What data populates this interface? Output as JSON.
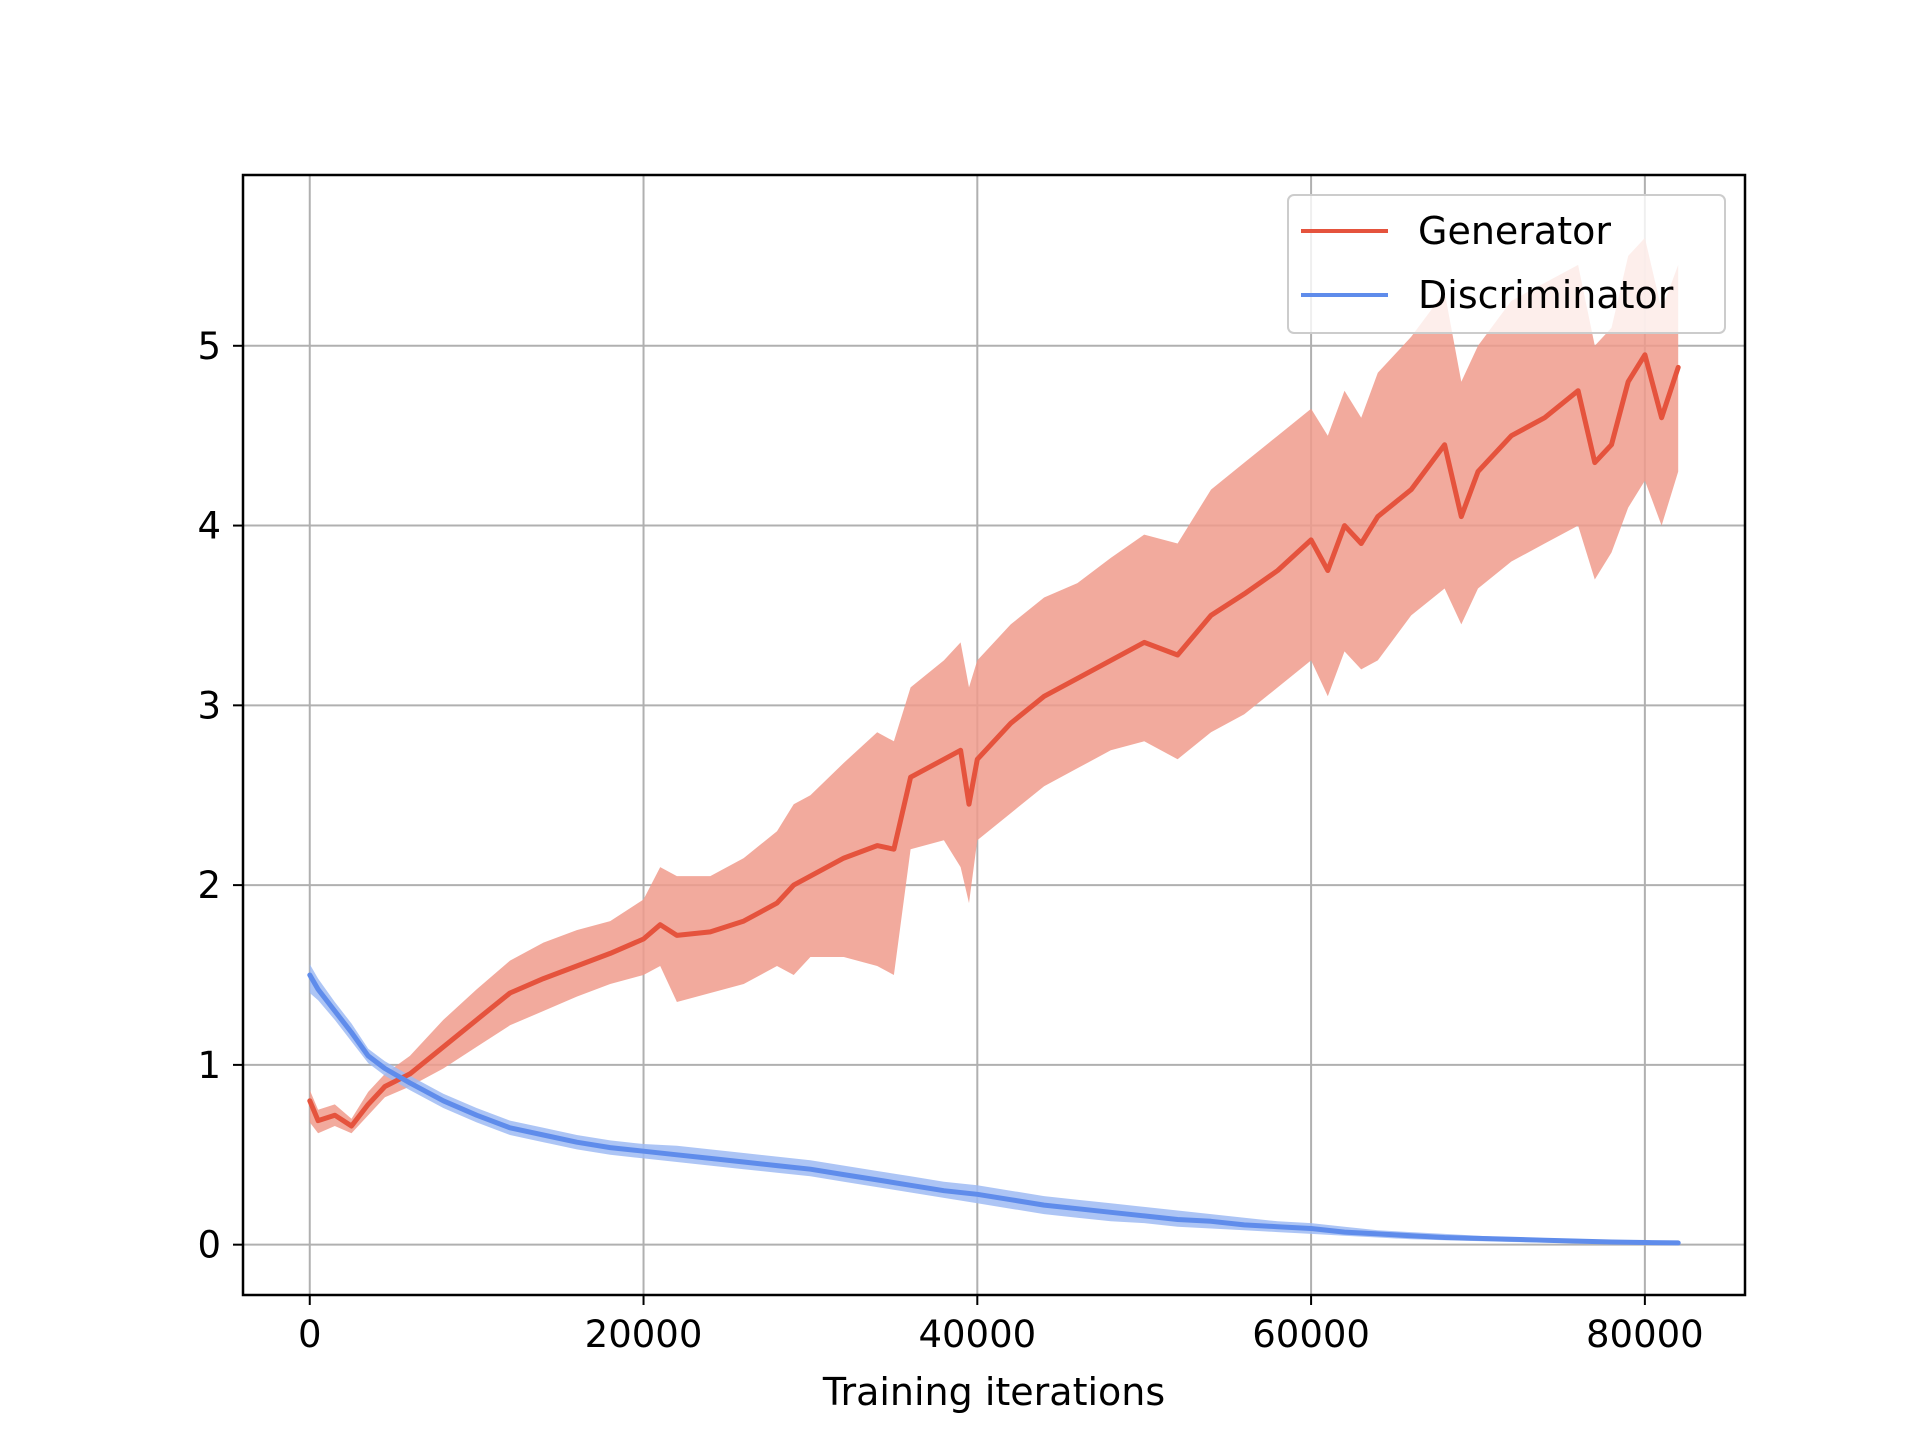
{
  "chart_data": {
    "type": "line",
    "title": "",
    "xlabel": "Training iterations",
    "ylabel": "",
    "xlim": [
      -4000,
      86000
    ],
    "ylim": [
      -0.28,
      5.95
    ],
    "xticks": [
      0,
      20000,
      40000,
      60000,
      80000
    ],
    "xtick_labels": [
      "0",
      "20000",
      "40000",
      "60000",
      "80000"
    ],
    "yticks": [
      0,
      1,
      2,
      3,
      4,
      5
    ],
    "ytick_labels": [
      "0",
      "1",
      "2",
      "3",
      "4",
      "5"
    ],
    "grid": true,
    "legend_position": "top-right",
    "series": [
      {
        "name": "Generator",
        "color": "#e5533d",
        "band_color": "#f09b8c",
        "x": [
          0,
          500,
          1500,
          2500,
          3500,
          4500,
          6000,
          8000,
          10000,
          12000,
          14000,
          16000,
          18000,
          20000,
          21000,
          22000,
          24000,
          26000,
          28000,
          29000,
          30000,
          32000,
          34000,
          35000,
          36000,
          38000,
          39000,
          39500,
          40000,
          42000,
          44000,
          46000,
          48000,
          50000,
          52000,
          54000,
          56000,
          58000,
          60000,
          61000,
          62000,
          63000,
          64000,
          66000,
          68000,
          69000,
          70000,
          72000,
          74000,
          76000,
          77000,
          78000,
          79000,
          80000,
          81000,
          82000
        ],
        "y": [
          0.8,
          0.69,
          0.72,
          0.66,
          0.78,
          0.88,
          0.95,
          1.1,
          1.25,
          1.4,
          1.48,
          1.55,
          1.62,
          1.7,
          1.78,
          1.72,
          1.74,
          1.8,
          1.9,
          2.0,
          2.05,
          2.15,
          2.22,
          2.2,
          2.6,
          2.7,
          2.75,
          2.45,
          2.7,
          2.9,
          3.05,
          3.15,
          3.25,
          3.35,
          3.28,
          3.5,
          3.62,
          3.75,
          3.92,
          3.75,
          4.0,
          3.9,
          4.05,
          4.2,
          4.45,
          4.05,
          4.3,
          4.5,
          4.6,
          4.75,
          4.35,
          4.45,
          4.8,
          4.95,
          4.6,
          4.88
        ],
        "lower": [
          0.68,
          0.62,
          0.66,
          0.62,
          0.72,
          0.82,
          0.88,
          0.98,
          1.1,
          1.22,
          1.3,
          1.38,
          1.45,
          1.5,
          1.55,
          1.35,
          1.4,
          1.45,
          1.55,
          1.5,
          1.6,
          1.6,
          1.55,
          1.5,
          2.2,
          2.25,
          2.1,
          1.9,
          2.25,
          2.4,
          2.55,
          2.65,
          2.75,
          2.8,
          2.7,
          2.85,
          2.95,
          3.1,
          3.25,
          3.05,
          3.3,
          3.2,
          3.25,
          3.5,
          3.65,
          3.45,
          3.65,
          3.8,
          3.9,
          4.0,
          3.7,
          3.85,
          4.1,
          4.25,
          4.0,
          4.3
        ],
        "upper": [
          0.86,
          0.75,
          0.78,
          0.7,
          0.85,
          0.95,
          1.05,
          1.25,
          1.42,
          1.58,
          1.68,
          1.75,
          1.8,
          1.92,
          2.1,
          2.05,
          2.05,
          2.15,
          2.3,
          2.45,
          2.5,
          2.68,
          2.85,
          2.8,
          3.1,
          3.25,
          3.35,
          3.1,
          3.25,
          3.45,
          3.6,
          3.68,
          3.82,
          3.95,
          3.9,
          4.2,
          4.35,
          4.5,
          4.65,
          4.5,
          4.75,
          4.6,
          4.85,
          5.05,
          5.3,
          4.8,
          5.0,
          5.25,
          5.35,
          5.45,
          5.0,
          5.1,
          5.5,
          5.6,
          5.2,
          5.45
        ]
      },
      {
        "name": "Discriminator",
        "color": "#5f8ceb",
        "band_color": "#9fbbf3",
        "x": [
          0,
          500,
          1500,
          2500,
          3500,
          4500,
          6000,
          8000,
          10000,
          12000,
          14000,
          16000,
          18000,
          20000,
          22000,
          24000,
          26000,
          28000,
          30000,
          32000,
          34000,
          36000,
          38000,
          40000,
          42000,
          44000,
          46000,
          48000,
          50000,
          52000,
          54000,
          56000,
          58000,
          60000,
          62000,
          64000,
          66000,
          68000,
          70000,
          72000,
          74000,
          76000,
          78000,
          80000,
          82000
        ],
        "y": [
          1.5,
          1.42,
          1.3,
          1.18,
          1.05,
          0.98,
          0.9,
          0.8,
          0.72,
          0.65,
          0.61,
          0.57,
          0.54,
          0.52,
          0.5,
          0.48,
          0.46,
          0.44,
          0.42,
          0.39,
          0.36,
          0.33,
          0.3,
          0.28,
          0.25,
          0.22,
          0.2,
          0.18,
          0.16,
          0.14,
          0.13,
          0.11,
          0.1,
          0.09,
          0.07,
          0.06,
          0.05,
          0.04,
          0.035,
          0.03,
          0.025,
          0.02,
          0.015,
          0.012,
          0.01
        ],
        "lower": [
          1.4,
          1.36,
          1.25,
          1.13,
          1.01,
          0.94,
          0.86,
          0.76,
          0.68,
          0.61,
          0.57,
          0.53,
          0.5,
          0.48,
          0.46,
          0.44,
          0.42,
          0.4,
          0.38,
          0.35,
          0.32,
          0.29,
          0.26,
          0.23,
          0.2,
          0.17,
          0.15,
          0.13,
          0.12,
          0.1,
          0.09,
          0.08,
          0.07,
          0.06,
          0.05,
          0.04,
          0.03,
          0.025,
          0.02,
          0.015,
          0.012,
          0.01,
          0.008,
          0.006,
          0.005
        ],
        "upper": [
          1.56,
          1.48,
          1.35,
          1.23,
          1.09,
          1.02,
          0.94,
          0.84,
          0.76,
          0.69,
          0.65,
          0.61,
          0.58,
          0.56,
          0.55,
          0.53,
          0.51,
          0.49,
          0.47,
          0.44,
          0.41,
          0.38,
          0.35,
          0.33,
          0.3,
          0.27,
          0.25,
          0.23,
          0.21,
          0.19,
          0.17,
          0.15,
          0.13,
          0.12,
          0.1,
          0.08,
          0.07,
          0.06,
          0.05,
          0.04,
          0.035,
          0.03,
          0.022,
          0.018,
          0.015
        ]
      }
    ]
  }
}
